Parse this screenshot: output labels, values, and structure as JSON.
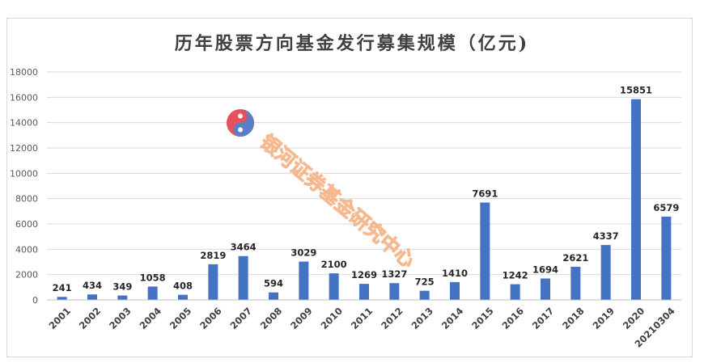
{
  "chart_data": {
    "type": "bar",
    "title": "历年股票方向基金发行募集规模（亿元)",
    "xlabel": "",
    "ylabel": "",
    "categories": [
      "2001",
      "2002",
      "2003",
      "2004",
      "2005",
      "2006",
      "2007",
      "2008",
      "2009",
      "2010",
      "2011",
      "2012",
      "2013",
      "2014",
      "2015",
      "2016",
      "2017",
      "2018",
      "2019",
      "2020",
      "20210304"
    ],
    "values": [
      241,
      434,
      349,
      1058,
      408,
      2819,
      3464,
      594,
      3029,
      2100,
      1269,
      1327,
      725,
      1410,
      7691,
      1242,
      1694,
      2621,
      4337,
      15851,
      6579
    ],
    "ylim": [
      0,
      18000
    ],
    "yticks": [
      0,
      2000,
      4000,
      6000,
      8000,
      10000,
      12000,
      14000,
      16000,
      18000
    ],
    "grid": true,
    "legend": "none",
    "data_labels": true,
    "bar_color": "#4472c4"
  },
  "watermark": {
    "text": "银河证券基金研究中心",
    "logo": "galaxy-securities-logo-icon",
    "logo_colors": [
      "#e8505b",
      "#5b7fc7"
    ]
  }
}
